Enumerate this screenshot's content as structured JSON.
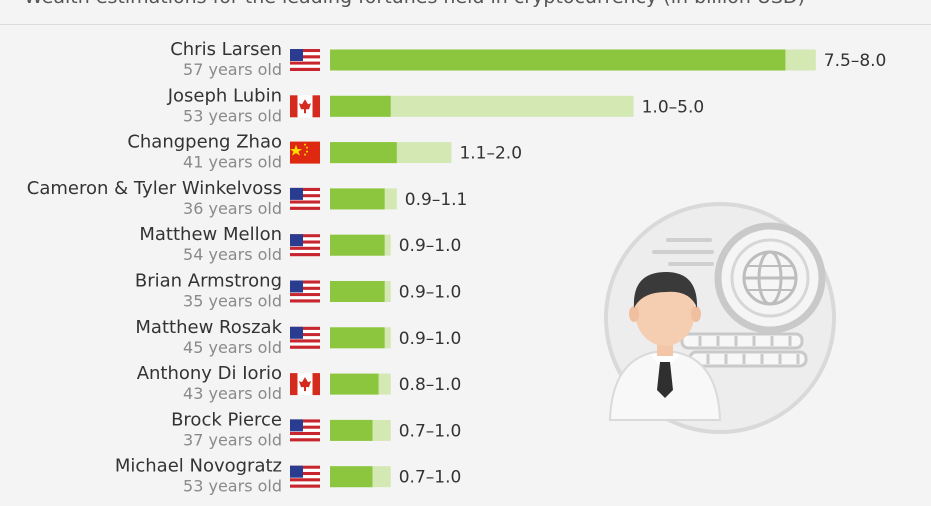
{
  "subtitle": "Wealth estimations for the leading fortunes held in cryptocurrency (in billion USD)",
  "colors": {
    "low": "#8cc63f",
    "high": "#d4e8b4",
    "text": "#333333",
    "age": "#8a8a8a"
  },
  "chart_data": {
    "type": "bar",
    "orientation": "horizontal",
    "title": "",
    "subtitle": "Wealth estimations for the leading fortunes held in cryptocurrency (in billion USD)",
    "xlim": [
      0,
      8.3
    ],
    "grid": false,
    "categories": [
      "Chris Larsen",
      "Joseph Lubin",
      "Changpeng Zhao",
      "Cameron & Tyler Winkelvoss",
      "Matthew Mellon",
      "Brian Armstrong",
      "Matthew Roszak",
      "Anthony Di Iorio",
      "Brock Pierce",
      "Michael Novogratz"
    ],
    "rows": [
      {
        "name": "Chris Larsen",
        "age": "57 years old",
        "country": "us-flag",
        "low": 7.5,
        "high": 8.0,
        "label": "7.5–8.0"
      },
      {
        "name": "Joseph Lubin",
        "age": "53 years old",
        "country": "ca-flag",
        "low": 1.0,
        "high": 5.0,
        "label": "1.0–5.0"
      },
      {
        "name": "Changpeng Zhao",
        "age": "41 years old",
        "country": "cn-flag",
        "low": 1.1,
        "high": 2.0,
        "label": "1.1–2.0"
      },
      {
        "name": "Cameron & Tyler Winkelvoss",
        "age": "36 years old",
        "country": "us-flag",
        "low": 0.9,
        "high": 1.1,
        "label": "0.9–1.1"
      },
      {
        "name": "Matthew Mellon",
        "age": "54 years old",
        "country": "us-flag",
        "low": 0.9,
        "high": 1.0,
        "label": "0.9–1.0"
      },
      {
        "name": "Brian Armstrong",
        "age": "35 years old",
        "country": "us-flag",
        "low": 0.9,
        "high": 1.0,
        "label": "0.9–1.0"
      },
      {
        "name": "Matthew Roszak",
        "age": "45 years old",
        "country": "us-flag",
        "low": 0.9,
        "high": 1.0,
        "label": "0.9–1.0"
      },
      {
        "name": "Anthony Di Iorio",
        "age": "43 years old",
        "country": "ca-flag",
        "low": 0.8,
        "high": 1.0,
        "label": "0.8–1.0"
      },
      {
        "name": "Brock Pierce",
        "age": "37 years old",
        "country": "us-flag",
        "low": 0.7,
        "high": 1.0,
        "label": "0.7–1.0"
      },
      {
        "name": "Michael Novogratz",
        "age": "53 years old",
        "country": "us-flag",
        "low": 0.7,
        "high": 1.0,
        "label": "0.7–1.0"
      }
    ]
  },
  "illustration": {
    "icon": "businessman-globe-coins-icon"
  }
}
